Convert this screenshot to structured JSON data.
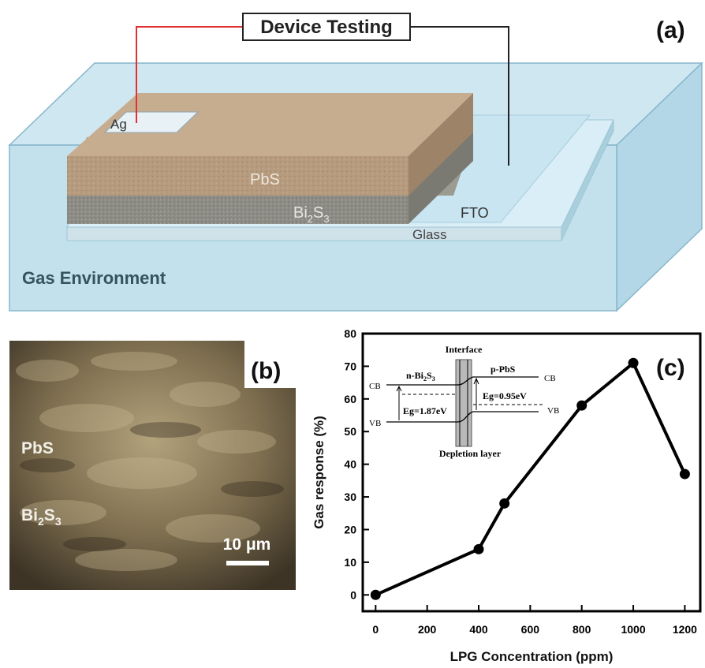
{
  "panel_a": {
    "label": "(a)",
    "device_testing": "Device Testing",
    "ag": "Ag",
    "pbs": "PbS",
    "bi2s3": {
      "base": "Bi",
      "sub1": "2",
      "mid": "S",
      "sub2": "3"
    },
    "fto": "FTO",
    "glass": "Glass",
    "gas_environment": "Gas Environment",
    "colors": {
      "wire_red": "#e03030",
      "wire_black": "#222222",
      "box_blue": "#bfe0ee",
      "pbs": "#b69b7e",
      "bi2s3": "#8d8d86"
    }
  },
  "panel_b": {
    "label": "(b)",
    "pbs": "PbS",
    "bi2s3": {
      "base": "Bi",
      "sub1": "2",
      "mid": "S",
      "sub2": "3"
    },
    "scale_bar": "10 μm"
  },
  "panel_c": {
    "label": "(c)",
    "inset": {
      "interface": "Interface",
      "n_layer": {
        "base": "n-Bi",
        "sub1": "2",
        "mid": "S",
        "sub2": "3"
      },
      "p_layer": "p-PbS",
      "cb_left": "CB",
      "vb_left": "VB",
      "cb_right": "CB",
      "vb_right": "VB",
      "eg_left": "Eg=1.87eV",
      "eg_right": "Eg=0.95eV",
      "depletion": "Depletion layer"
    }
  },
  "chart_data": {
    "type": "line",
    "x": [
      0,
      400,
      500,
      800,
      1000,
      1200
    ],
    "y": [
      0,
      14,
      28,
      58,
      71,
      37
    ],
    "xlabel": "LPG Concentration (ppm)",
    "ylabel": "Gas response (%)",
    "xlim": [
      -50,
      1260
    ],
    "ylim": [
      -5,
      80
    ],
    "xticks": [
      "0",
      "200",
      "400",
      "600",
      "800",
      "1000",
      "1200"
    ],
    "yticks": [
      "0",
      "10",
      "20",
      "30",
      "40",
      "50",
      "60",
      "70",
      "80"
    ],
    "grid": false
  }
}
